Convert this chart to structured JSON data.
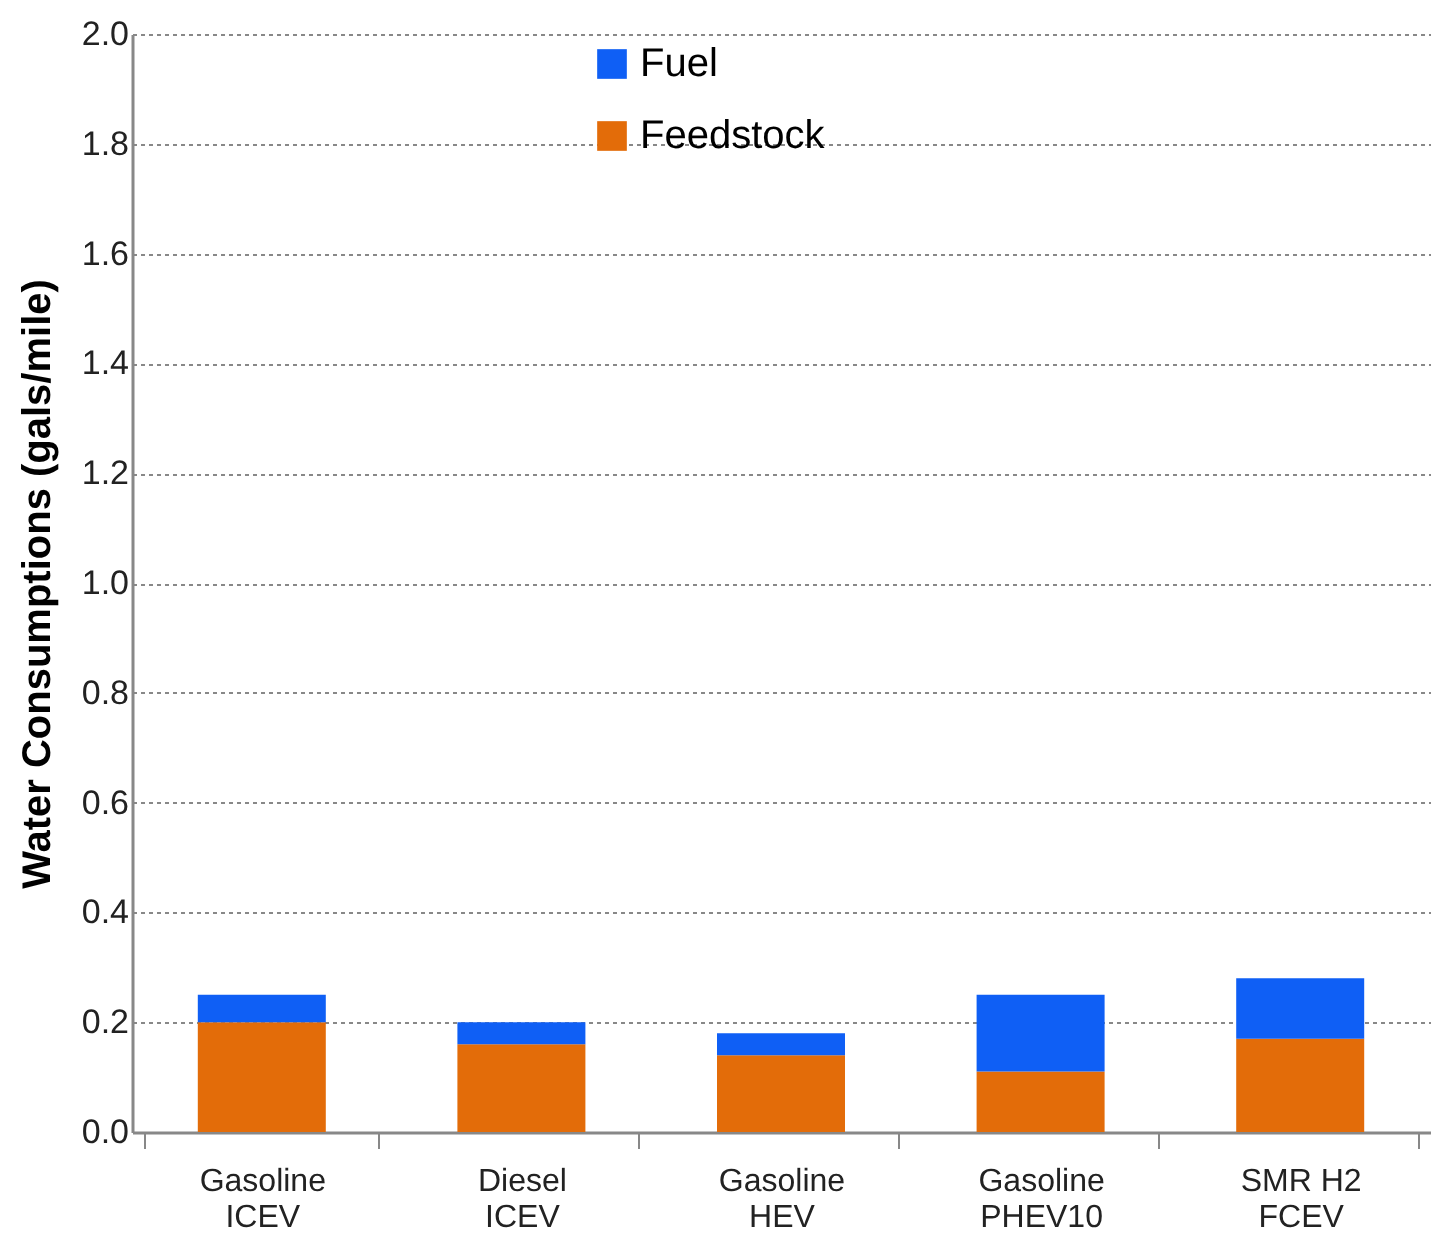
{
  "chart_data": {
    "type": "bar",
    "stacked": true,
    "ylabel": "Water Consumptions (gals/mile)",
    "categories": [
      "Gasoline\nICEV",
      "Diesel\nICEV",
      "Gasoline\nHEV",
      "Gasoline\nPHEV10",
      "SMR H2\nFCEV"
    ],
    "series": [
      {
        "name": "Feedstock",
        "color": "#e36c09",
        "values": [
          0.2,
          0.16,
          0.14,
          0.11,
          0.17
        ]
      },
      {
        "name": "Fuel",
        "color": "#0f5ff5",
        "values": [
          0.05,
          0.04,
          0.04,
          0.14,
          0.11
        ]
      }
    ],
    "ylim": [
      0,
      2.0
    ],
    "yticks": [
      {
        "value": 0,
        "label": "0.0"
      },
      0.2,
      0.4,
      0.6,
      0.8,
      {
        "value": 1.0,
        "label": "1.0"
      },
      1.2,
      1.4,
      1.6,
      1.8,
      {
        "value": 2.0,
        "label": "2.0"
      }
    ],
    "grid": "y",
    "legend": "top"
  }
}
